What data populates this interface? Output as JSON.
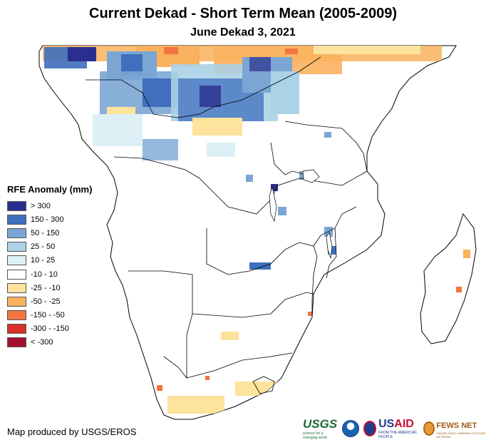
{
  "title": "Current Dekad - Short Term Mean (2005-2009)",
  "subtitle": "June Dekad 3, 2021",
  "legend": {
    "title": "RFE Anomaly (mm)",
    "items": [
      {
        "label": "> 300",
        "color": "#2a2f8f"
      },
      {
        "label": "150 - 300",
        "color": "#3f6fbd"
      },
      {
        "label": "50 - 150",
        "color": "#7ba6d4"
      },
      {
        "label": "25 - 50",
        "color": "#acd2e7"
      },
      {
        "label": "10 - 25",
        "color": "#dcf0f6"
      },
      {
        "label": "-10 - 10",
        "color": "#ffffff"
      },
      {
        "label": "-25 - -10",
        "color": "#fde39c"
      },
      {
        "label": "-50 - -25",
        "color": "#f9b15e"
      },
      {
        "label": "-150 - -50",
        "color": "#f2753f"
      },
      {
        "label": "-300 - -150",
        "color": "#d9302a"
      },
      {
        "label": "< -300",
        "color": "#a50f2f"
      }
    ]
  },
  "credit": "Map produced by USGS/EROS",
  "logos": {
    "usgs": "USGS",
    "usgs_tagline": "science for a changing world",
    "usaid_us": "US",
    "usaid_aid": "AID",
    "usaid_tagline": "FROM THE AMERICAN PEOPLE",
    "fews": "FEWS NET",
    "fews_tagline": "FAMINE EARLY WARNING SYSTEMS NETWORK"
  }
}
